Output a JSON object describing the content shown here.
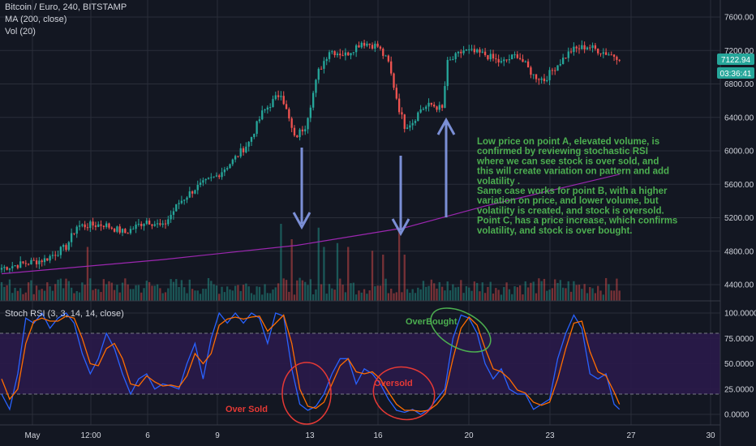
{
  "header": {
    "symbol_line": "Bitcoin / Euro, 240, BITSTAMP",
    "ma_line": "MA (200, close)",
    "vol_line": "Vol (20)"
  },
  "rsi_header": "Stoch RSI (3, 3, 14, 14, close)",
  "price_tags": {
    "last_price": "7122.94",
    "countdown": "03:36:41"
  },
  "colors": {
    "background": "#131722",
    "up": "#26a69a",
    "down": "#ef5350",
    "ma": "#9c27b0",
    "k_line": "#2962ff",
    "d_line": "#ff6d00",
    "rsi_band": "#2a1a4a",
    "annotation_green": "#4caf50",
    "annotation_red": "#e53935",
    "arrow": "#7b8fd6",
    "last_price_bg": "#26a69a",
    "countdown_bg": "#26a69a"
  },
  "chart_data": [
    {
      "type": "candlestick",
      "title": "Bitcoin / Euro, 240, BITSTAMP",
      "x_ticks": [
        "May",
        "12:00",
        "6",
        "9",
        "13",
        "16",
        "20",
        "23",
        "27",
        "30"
      ],
      "y_ticks": [
        4400,
        4800,
        5200,
        5600,
        6000,
        6400,
        6800,
        7200,
        7600
      ],
      "ylim": [
        4150,
        7700
      ],
      "anchors": [
        {
          "i": 0,
          "price": 4600
        },
        {
          "i": 8,
          "price": 4650
        },
        {
          "i": 16,
          "price": 4700
        },
        {
          "i": 24,
          "price": 4850
        },
        {
          "i": 28,
          "price": 5100
        },
        {
          "i": 38,
          "price": 5120
        },
        {
          "i": 46,
          "price": 5020
        },
        {
          "i": 54,
          "price": 5170
        },
        {
          "i": 60,
          "price": 5090
        },
        {
          "i": 66,
          "price": 5380
        },
        {
          "i": 72,
          "price": 5550
        },
        {
          "i": 80,
          "price": 5700
        },
        {
          "i": 86,
          "price": 5880
        },
        {
          "i": 92,
          "price": 6100
        },
        {
          "i": 97,
          "price": 6450
        },
        {
          "i": 104,
          "price": 6700
        },
        {
          "i": 109,
          "price": 6150
        },
        {
          "i": 113,
          "price": 6300
        },
        {
          "i": 118,
          "price": 6950
        },
        {
          "i": 122,
          "price": 7200
        },
        {
          "i": 128,
          "price": 7150
        },
        {
          "i": 134,
          "price": 7300
        },
        {
          "i": 140,
          "price": 7250
        },
        {
          "i": 144,
          "price": 7050
        },
        {
          "i": 148,
          "price": 6500
        },
        {
          "i": 150,
          "price": 6300
        },
        {
          "i": 153,
          "price": 6350
        },
        {
          "i": 156,
          "price": 6500
        },
        {
          "i": 160,
          "price": 6550
        },
        {
          "i": 164,
          "price": 6500
        },
        {
          "i": 166,
          "price": 7050
        },
        {
          "i": 172,
          "price": 7200
        },
        {
          "i": 180,
          "price": 7150
        },
        {
          "i": 186,
          "price": 7050
        },
        {
          "i": 192,
          "price": 7150
        },
        {
          "i": 198,
          "price": 6900
        },
        {
          "i": 202,
          "price": 6850
        },
        {
          "i": 206,
          "price": 7000
        },
        {
          "i": 212,
          "price": 7200
        },
        {
          "i": 218,
          "price": 7250
        },
        {
          "i": 224,
          "price": 7180
        },
        {
          "i": 230,
          "price": 7120
        }
      ],
      "ma": [
        [
          0,
          4530
        ],
        [
          60,
          4700
        ],
        [
          110,
          4870
        ],
        [
          150,
          5080
        ],
        [
          180,
          5340
        ],
        [
          230,
          5720
        ]
      ],
      "volume_spikes": [
        {
          "i": 32,
          "v": 0.7
        },
        {
          "i": 104,
          "v": 1.0
        },
        {
          "i": 108,
          "v": 0.8
        },
        {
          "i": 118,
          "v": 0.95
        },
        {
          "i": 120,
          "v": 0.7
        },
        {
          "i": 125,
          "v": 0.75
        },
        {
          "i": 129,
          "v": 0.7
        },
        {
          "i": 138,
          "v": 0.65
        },
        {
          "i": 142,
          "v": 0.6
        },
        {
          "i": 148,
          "v": 0.95
        },
        {
          "i": 150,
          "v": 0.6
        }
      ]
    },
    {
      "type": "line",
      "title": "Stoch RSI (3, 3, 14, 14, close)",
      "y_ticks": [
        0.0,
        25.0,
        50.0,
        75.0,
        100.0
      ],
      "y_tick_labels": [
        "0.0000",
        "25.0000",
        "50.0000",
        "75.0000",
        "100.0000"
      ],
      "ylim": [
        -10,
        110
      ],
      "bands": [
        20,
        80
      ],
      "series": [
        {
          "key": "k",
          "values": [
            [
              0,
              20
            ],
            [
              3,
              5
            ],
            [
              6,
              40
            ],
            [
              9,
              95
            ],
            [
              12,
              90
            ],
            [
              15,
              100
            ],
            [
              18,
              85
            ],
            [
              21,
              95
            ],
            [
              24,
              100
            ],
            [
              27,
              90
            ],
            [
              30,
              60
            ],
            [
              33,
              40
            ],
            [
              36,
              55
            ],
            [
              39,
              80
            ],
            [
              42,
              65
            ],
            [
              45,
              40
            ],
            [
              48,
              20
            ],
            [
              51,
              35
            ],
            [
              54,
              40
            ],
            [
              57,
              25
            ],
            [
              60,
              30
            ],
            [
              63,
              28
            ],
            [
              66,
              25
            ],
            [
              69,
              50
            ],
            [
              72,
              70
            ],
            [
              75,
              35
            ],
            [
              78,
              75
            ],
            [
              81,
              100
            ],
            [
              84,
              90
            ],
            [
              87,
              100
            ],
            [
              90,
              90
            ],
            [
              93,
              100
            ],
            [
              96,
              95
            ],
            [
              99,
              70
            ],
            [
              102,
              100
            ],
            [
              105,
              97
            ],
            [
              108,
              45
            ],
            [
              111,
              10
            ],
            [
              114,
              4
            ],
            [
              117,
              8
            ],
            [
              120,
              20
            ],
            [
              123,
              40
            ],
            [
              126,
              55
            ],
            [
              129,
              55
            ],
            [
              132,
              30
            ],
            [
              135,
              45
            ],
            [
              138,
              40
            ],
            [
              141,
              30
            ],
            [
              144,
              15
            ],
            [
              147,
              4
            ],
            [
              150,
              2
            ],
            [
              153,
              5
            ],
            [
              156,
              0
            ],
            [
              159,
              5
            ],
            [
              162,
              15
            ],
            [
              165,
              25
            ],
            [
              168,
              75
            ],
            [
              171,
              98
            ],
            [
              174,
              95
            ],
            [
              177,
              80
            ],
            [
              180,
              50
            ],
            [
              183,
              35
            ],
            [
              186,
              45
            ],
            [
              189,
              25
            ],
            [
              192,
              20
            ],
            [
              195,
              20
            ],
            [
              198,
              5
            ],
            [
              201,
              10
            ],
            [
              204,
              15
            ],
            [
              207,
              55
            ],
            [
              210,
              80
            ],
            [
              213,
              98
            ],
            [
              216,
              85
            ],
            [
              219,
              40
            ],
            [
              222,
              35
            ],
            [
              225,
              40
            ],
            [
              228,
              10
            ],
            [
              230,
              5
            ]
          ]
        },
        {
          "key": "d",
          "values": [
            [
              0,
              35
            ],
            [
              3,
              15
            ],
            [
              6,
              25
            ],
            [
              9,
              70
            ],
            [
              12,
              92
            ],
            [
              15,
              95
            ],
            [
              18,
              92
            ],
            [
              21,
              92
            ],
            [
              24,
              97
            ],
            [
              27,
              95
            ],
            [
              30,
              75
            ],
            [
              33,
              50
            ],
            [
              36,
              48
            ],
            [
              39,
              65
            ],
            [
              42,
              70
            ],
            [
              45,
              55
            ],
            [
              48,
              30
            ],
            [
              51,
              28
            ],
            [
              54,
              38
            ],
            [
              57,
              32
            ],
            [
              60,
              28
            ],
            [
              63,
              29
            ],
            [
              66,
              27
            ],
            [
              69,
              38
            ],
            [
              72,
              60
            ],
            [
              75,
              50
            ],
            [
              78,
              60
            ],
            [
              81,
              88
            ],
            [
              84,
              94
            ],
            [
              87,
              96
            ],
            [
              90,
              94
            ],
            [
              93,
              96
            ],
            [
              96,
              97
            ],
            [
              99,
              82
            ],
            [
              102,
              90
            ],
            [
              105,
              98
            ],
            [
              108,
              70
            ],
            [
              111,
              25
            ],
            [
              114,
              8
            ],
            [
              117,
              6
            ],
            [
              120,
              12
            ],
            [
              123,
              30
            ],
            [
              126,
              48
            ],
            [
              129,
              55
            ],
            [
              132,
              42
            ],
            [
              135,
              40
            ],
            [
              138,
              42
            ],
            [
              141,
              35
            ],
            [
              144,
              22
            ],
            [
              147,
              10
            ],
            [
              150,
              4
            ],
            [
              153,
              4
            ],
            [
              156,
              3
            ],
            [
              159,
              4
            ],
            [
              162,
              10
            ],
            [
              165,
              20
            ],
            [
              168,
              55
            ],
            [
              171,
              85
            ],
            [
              174,
              96
            ],
            [
              177,
              88
            ],
            [
              180,
              65
            ],
            [
              183,
              45
            ],
            [
              186,
              42
            ],
            [
              189,
              35
            ],
            [
              192,
              24
            ],
            [
              195,
              21
            ],
            [
              198,
              12
            ],
            [
              201,
              9
            ],
            [
              204,
              12
            ],
            [
              207,
              35
            ],
            [
              210,
              65
            ],
            [
              213,
              90
            ],
            [
              216,
              92
            ],
            [
              219,
              62
            ],
            [
              222,
              42
            ],
            [
              225,
              38
            ],
            [
              228,
              22
            ],
            [
              230,
              10
            ]
          ]
        }
      ]
    }
  ],
  "annotations": {
    "note_lines": [
      " Low price on point A, elevated volume, is",
      "confirmed by reviewing stochastic RSI",
      "where we can see stock is over sold, and",
      "this will create variation on pattern and add",
      "volatility .",
      "Same case works for point B, with a higher",
      "variation on price, and lower volume, but",
      "volatility is created, and stock is oversold.",
      "Point C, has a price increase, which confirms",
      "volatility, and stock is over bought."
    ],
    "overbought": "OverBought",
    "oversold": "Oversold",
    "over_sold": "Over Sold"
  }
}
